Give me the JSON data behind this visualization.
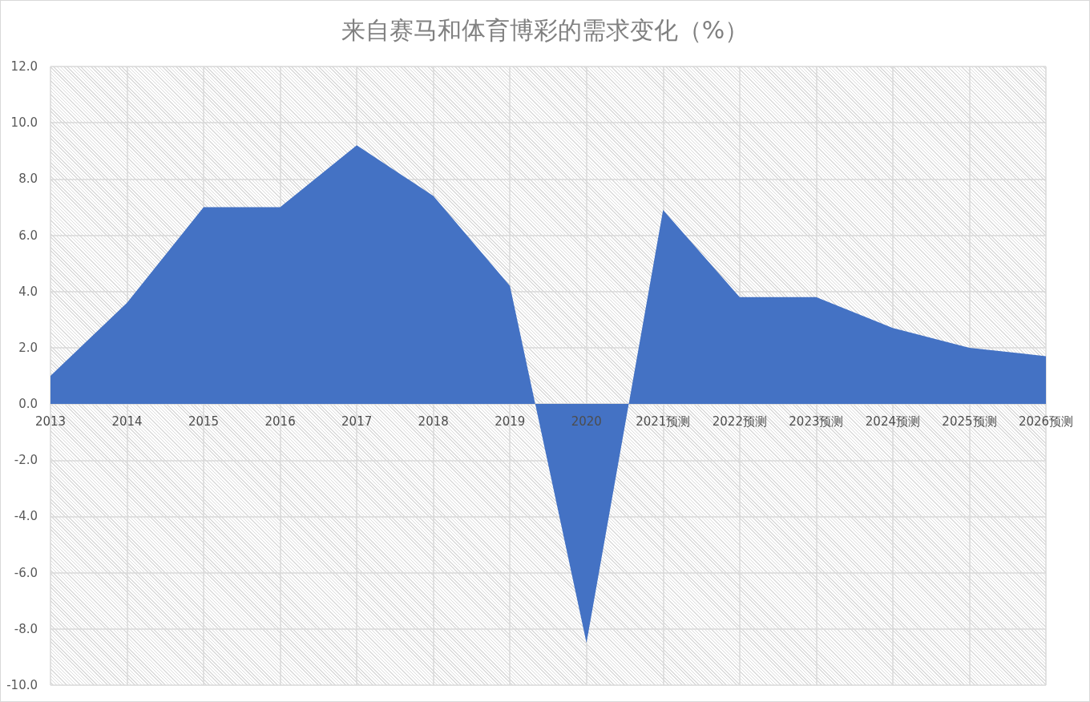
{
  "chart_data": {
    "type": "area",
    "title": "来自赛马和体育博彩的需求变化（%）",
    "categories": [
      "2013",
      "2014",
      "2015",
      "2016",
      "2017",
      "2018",
      "2019",
      "2020",
      "2021预测",
      "2022预测",
      "2023预测",
      "2024预测",
      "2025预测",
      "2026预测"
    ],
    "values": [
      1.0,
      3.6,
      7.0,
      7.0,
      9.2,
      7.4,
      4.2,
      -8.5,
      6.9,
      3.8,
      3.8,
      2.7,
      2.0,
      1.7
    ],
    "color": "#4472c4",
    "ylim": [
      -10,
      12
    ],
    "yticks": [
      {
        "value": -10,
        "label": "-10.0"
      },
      {
        "value": -8,
        "label": "-8.0"
      },
      {
        "value": -6,
        "label": "-6.0"
      },
      {
        "value": -4,
        "label": "-4.0"
      },
      {
        "value": -2,
        "label": "-2.0"
      },
      {
        "value": 0,
        "label": "0.0"
      },
      {
        "value": 2,
        "label": "2.0"
      },
      {
        "value": 4,
        "label": "4.0"
      },
      {
        "value": 6,
        "label": "6.0"
      },
      {
        "value": 8,
        "label": "8.0"
      },
      {
        "value": 10,
        "label": "10.0"
      },
      {
        "value": 12,
        "label": "12.0"
      }
    ],
    "grid": true
  }
}
